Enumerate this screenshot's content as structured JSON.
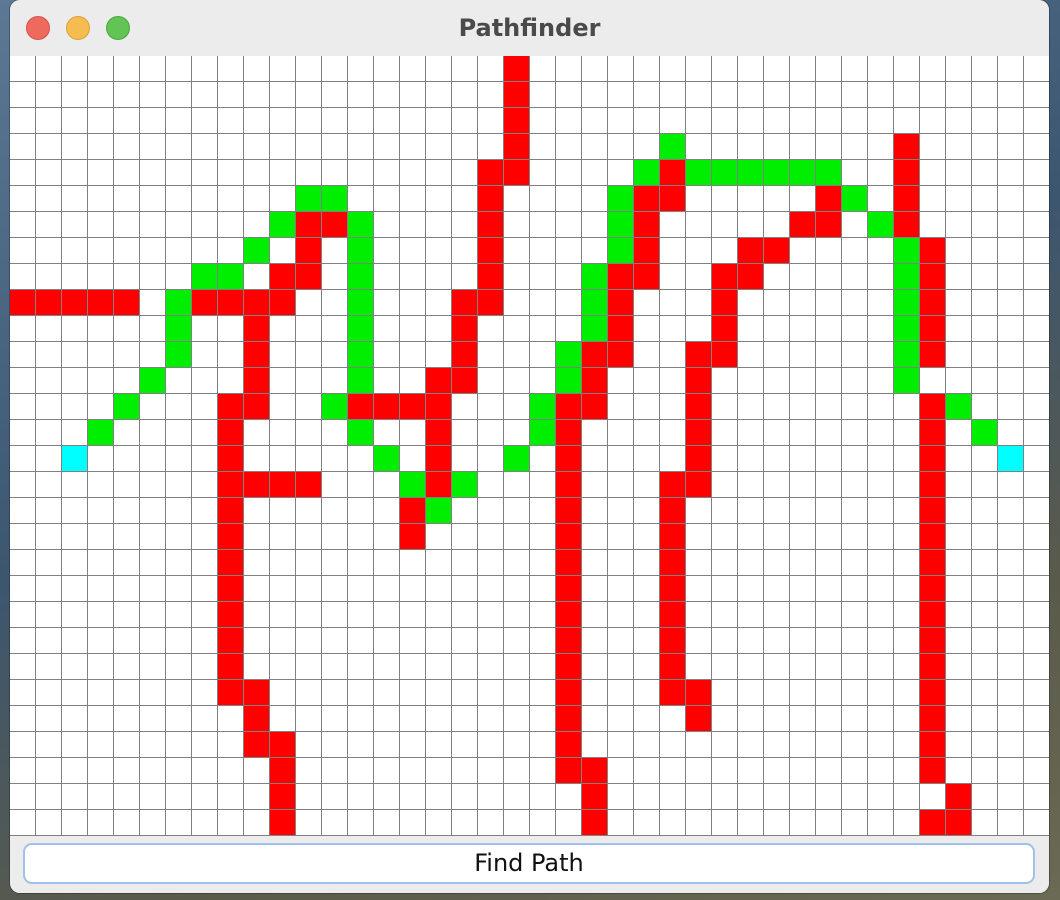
{
  "window": {
    "title": "Pathfinder"
  },
  "controls": {
    "find_path_label": "Find Path"
  },
  "colors": {
    "wall": "#ff0000",
    "path": "#00ee00",
    "endpoint": "#00ffff",
    "empty": "#ffffff",
    "gridline": "#808080"
  },
  "grid": {
    "columns": 40,
    "rows": 30,
    "legend": {
      ".": "empty",
      "#": "wall",
      "o": "path",
      "E": "endpoint"
    },
    "cells": [
      "...................#....................",
      "...................#....................",
      "...................#....................",
      "...................#.....o........#.....",
      "..................##....o#oooooo..#.....",
      "...........oo.....#....o##.....#o.#.....",
      "..........o##o....#....o#.....##.o#.....",
      ".........o.#.o....#....o#...##....o#....",
      ".......oo.##.o....#...o##..##.....o#....",
      "#####.o####..o...##...o#...#......o#....",
      "......o..#...o...#....o#...#......o#....",
      "......o..#...o...#...o##..##......o#....",
      ".....o...#...o..##...o#...#.......o.....",
      "....o...##..o####...o##...#........#o...",
      "...o....#....o..#...o#....#........#.o..",
      "..E.....#.....o.#..o.#....#........#..E.",
      "........####...o#o...#...##........#....",
      "........#......#o....#...#.........#....",
      "........#......#.....#...#.........#....",
      "........#............#...#.........#....",
      "........#............#...#.........#....",
      "........#............#...#.........#....",
      "........#............#...#.........#....",
      "........#............#...#.........#....",
      "........##...........#...##........#....",
      ".........#...........#....#........#....",
      ".........##..........#.............#....",
      "..........#..........##............#....",
      "..........#...........#.............#...",
      "..........#...........#............##..."
    ]
  }
}
